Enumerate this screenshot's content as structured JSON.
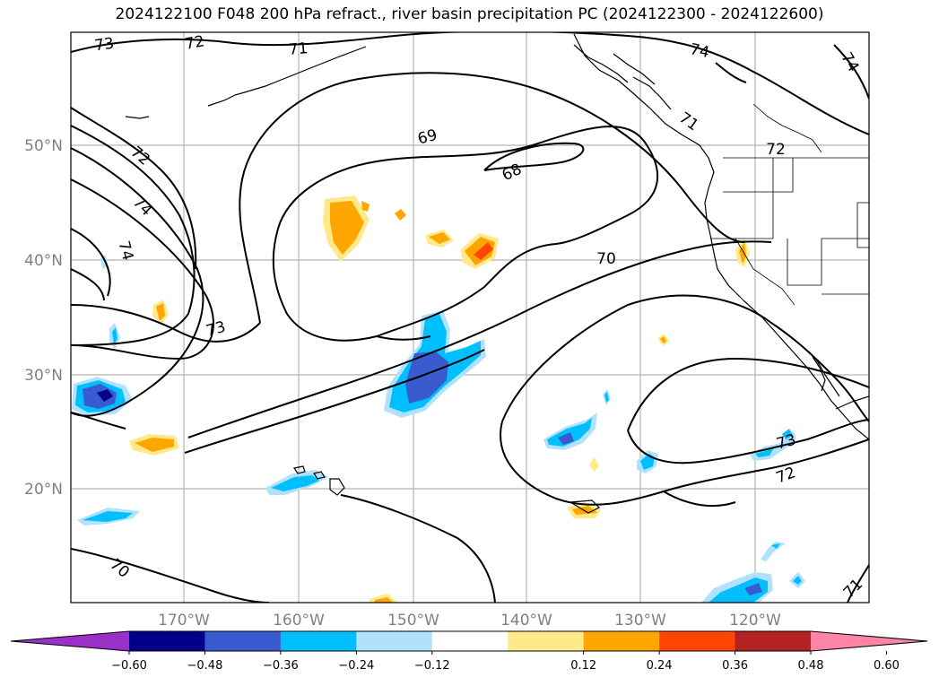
{
  "title": "2024122100 F048 200 hPa refract., river basin precipitation PC (2024122300 - 2024122600)",
  "lat_labels": [
    "50°N",
    "40°N",
    "30°N",
    "20°N"
  ],
  "lon_labels": [
    "170°W",
    "160°W",
    "150°W",
    "140°W",
    "130°W",
    "120°W"
  ],
  "contour_labels": [
    "73",
    "72",
    "71",
    "74",
    "74",
    "71",
    "72",
    "69",
    "68",
    "72",
    "74",
    "74",
    "70",
    "73",
    "73",
    "72",
    "70",
    "71"
  ],
  "colorbar": {
    "colors": [
      "#9b30c8",
      "#00008b",
      "#3a5bd0",
      "#00bfff",
      "#b0e2ff",
      "#ffffff",
      "#ffe98a",
      "#ffa500",
      "#ff4500",
      "#b22222",
      "#ff85a6"
    ],
    "tick_labels": [
      "−0.60",
      "−0.48",
      "−0.36",
      "−0.24",
      "−0.12",
      "0.12",
      "0.24",
      "0.36",
      "0.48",
      "0.60"
    ]
  }
}
